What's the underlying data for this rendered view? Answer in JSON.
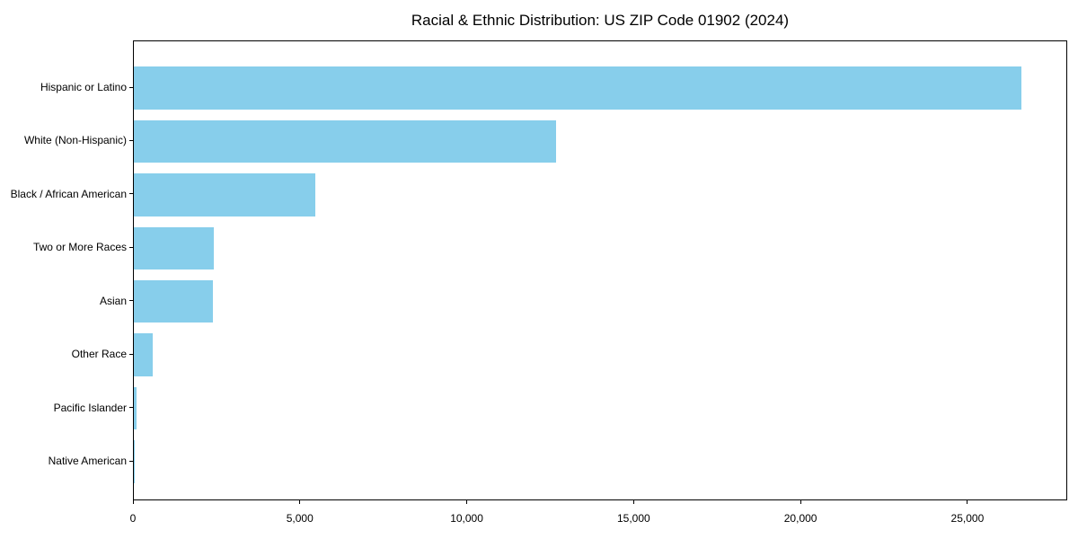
{
  "title": "Racial & Ethnic Distribution: US ZIP Code 01902 (2024)",
  "chart_data": {
    "type": "bar",
    "orientation": "horizontal",
    "title": "Racial & Ethnic Distribution: US ZIP Code 01902 (2024)",
    "xlabel": "",
    "ylabel": "",
    "categories": [
      "Hispanic or Latino",
      "White (Non-Hispanic)",
      "Black / African American",
      "Two or More Races",
      "Asian",
      "Other Race",
      "Pacific Islander",
      "Native American"
    ],
    "values": [
      26590,
      12650,
      5435,
      2395,
      2370,
      565,
      80,
      20
    ],
    "xlim": [
      0,
      27990
    ],
    "x_ticks": [
      0,
      5000,
      10000,
      15000,
      20000,
      25000
    ],
    "x_tick_labels": [
      "0",
      "5,000",
      "10,000",
      "15,000",
      "20,000",
      "25,000"
    ],
    "bar_color": "#87CEEB",
    "text_color": "#000000",
    "grid": false,
    "legend": "none"
  }
}
